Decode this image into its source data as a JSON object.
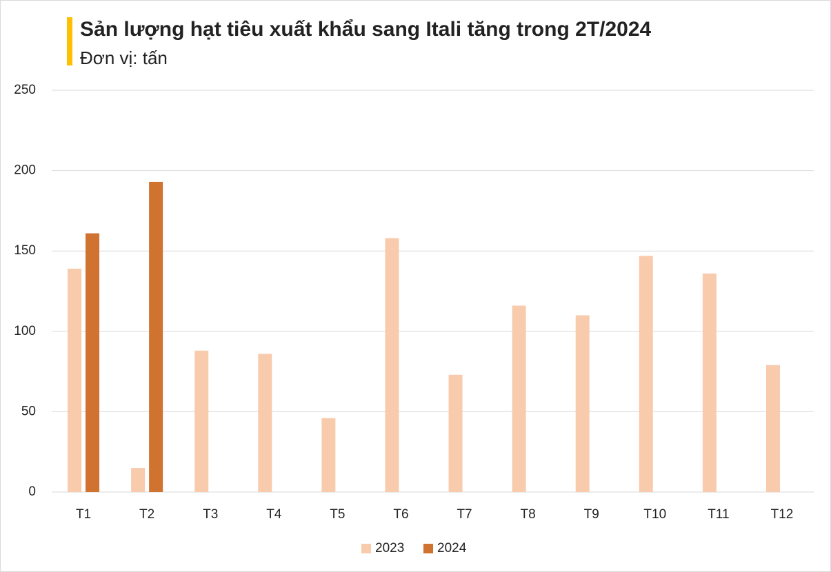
{
  "chart_data": {
    "type": "bar",
    "title": "Sản lượng hạt tiêu xuất khẩu sang Itali tăng trong 2T/2024",
    "subtitle": "Đơn vị: tấn",
    "categories": [
      "T1",
      "T2",
      "T3",
      "T4",
      "T5",
      "T6",
      "T7",
      "T8",
      "T9",
      "T10",
      "T11",
      "T12"
    ],
    "series": [
      {
        "name": "2023",
        "color": "#f8cbad",
        "values": [
          139,
          15,
          88,
          86,
          46,
          158,
          73,
          116,
          110,
          147,
          136,
          79
        ]
      },
      {
        "name": "2024",
        "color": "#d07230",
        "values": [
          161,
          193,
          null,
          null,
          null,
          null,
          null,
          null,
          null,
          null,
          null,
          null
        ]
      }
    ],
    "ylim": [
      0,
      250
    ],
    "yticks": [
      0,
      50,
      100,
      150,
      200,
      250
    ],
    "grid": true,
    "legend": "bottom"
  }
}
